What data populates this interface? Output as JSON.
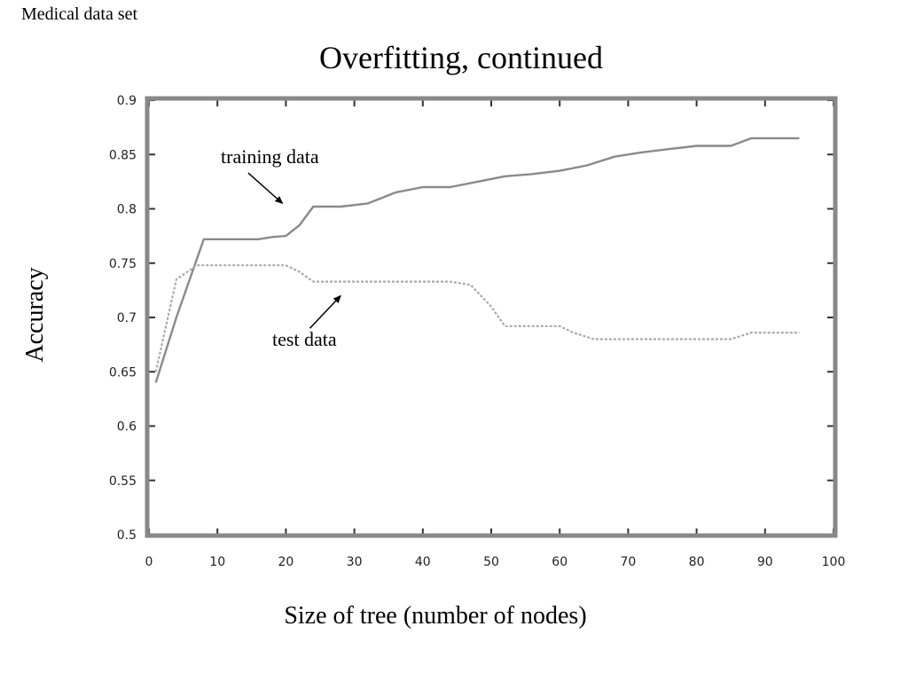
{
  "slide": {
    "corner_label": "Medical data set",
    "title": "Overfitting, continued"
  },
  "colors": {
    "frame": "#888888",
    "training_line": "#8a8a8a",
    "test_line": "#aaaaaa",
    "tick": "#333333",
    "arrow": "#000000"
  },
  "chart_data": {
    "type": "line",
    "title": "",
    "xlabel": "Size of tree (number of nodes)",
    "ylabel": "Accuracy",
    "xlim": [
      0,
      100
    ],
    "ylim": [
      0.5,
      0.9
    ],
    "xticks": [
      0,
      10,
      20,
      30,
      40,
      50,
      60,
      70,
      80,
      90,
      100
    ],
    "xtick_labels": [
      "0",
      "10",
      "20",
      "30",
      "40",
      "50",
      "60",
      "70",
      "80",
      "90",
      "100"
    ],
    "yticks": [
      0.5,
      0.55,
      0.6,
      0.65,
      0.7,
      0.75,
      0.8,
      0.85,
      0.9
    ],
    "ytick_labels": [
      "0.5",
      "0.55",
      "0.6",
      "0.65",
      "0.7",
      "0.75",
      "0.8",
      "0.85",
      "0.9"
    ],
    "grid": false,
    "legend": "none",
    "series": [
      {
        "id": "training",
        "x": [
          1,
          4,
          8,
          12,
          16,
          18,
          20,
          22,
          24,
          28,
          32,
          36,
          40,
          44,
          48,
          52,
          56,
          60,
          64,
          68,
          72,
          76,
          80,
          85,
          88,
          92,
          95
        ],
        "y": [
          0.64,
          0.7,
          0.772,
          0.772,
          0.772,
          0.774,
          0.775,
          0.785,
          0.802,
          0.802,
          0.805,
          0.815,
          0.82,
          0.82,
          0.825,
          0.83,
          0.832,
          0.835,
          0.84,
          0.848,
          0.852,
          0.855,
          0.858,
          0.858,
          0.865,
          0.865,
          0.865
        ]
      },
      {
        "id": "test",
        "x": [
          1,
          4,
          7,
          10,
          15,
          20,
          22,
          24,
          28,
          32,
          36,
          40,
          44,
          47,
          50,
          52,
          56,
          60,
          62,
          65,
          70,
          75,
          80,
          85,
          88,
          92,
          95
        ],
        "y": [
          0.65,
          0.735,
          0.748,
          0.748,
          0.748,
          0.748,
          0.742,
          0.733,
          0.733,
          0.733,
          0.733,
          0.733,
          0.733,
          0.73,
          0.71,
          0.692,
          0.692,
          0.692,
          0.686,
          0.68,
          0.68,
          0.68,
          0.68,
          0.68,
          0.686,
          0.686,
          0.686
        ]
      }
    ],
    "annotations": [
      {
        "text": "training data",
        "target_series": "training",
        "text_xy": [
          10.5,
          0.842
        ],
        "arrow_from": [
          14.5,
          0.833
        ],
        "arrow_to": [
          19.5,
          0.805
        ]
      },
      {
        "text": "test data",
        "target_series": "test",
        "text_xy": [
          18,
          0.674
        ],
        "arrow_from": [
          23.5,
          0.69
        ],
        "arrow_to": [
          28,
          0.72
        ]
      }
    ]
  }
}
